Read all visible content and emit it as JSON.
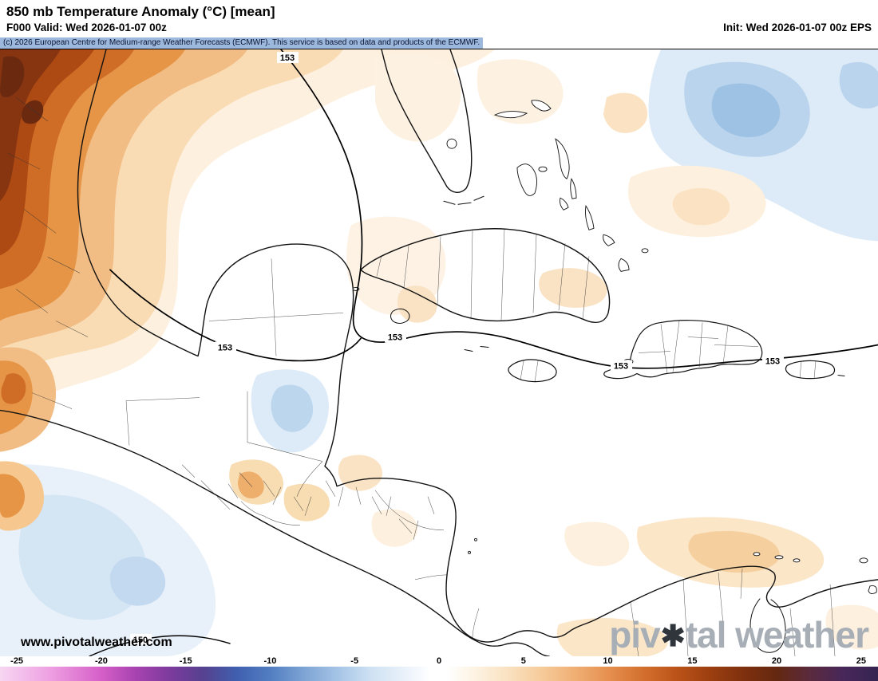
{
  "header": {
    "title": "850 mb Temperature Anomaly (°C) [mean]",
    "valid_label": "F000 Valid: Wed 2026-01-07 00z",
    "init_label": "Init: Wed 2026-01-07 00z EPS",
    "copyright": "(c) 2026 European Centre for Medium-range Weather Forecasts (ECMWF). This service is based on data and products of the ECMWF."
  },
  "map": {
    "contour_label": "153",
    "contour_label_secondary": "150",
    "watermark": "www.pivotalweather.com",
    "logo_prefix": "piv",
    "logo_gear_icon": "✱",
    "logo_suffix": "tal weather"
  },
  "colorbar": {
    "range": [
      -26,
      26
    ],
    "ticks": [
      {
        "value": -25,
        "label": "-25"
      },
      {
        "value": -20,
        "label": "-20"
      },
      {
        "value": -15,
        "label": "-15"
      },
      {
        "value": -10,
        "label": "-10"
      },
      {
        "value": -5,
        "label": "-5"
      },
      {
        "value": 0,
        "label": "0"
      },
      {
        "value": 5,
        "label": "5"
      },
      {
        "value": 10,
        "label": "10"
      },
      {
        "value": 15,
        "label": "15"
      },
      {
        "value": 20,
        "label": "20"
      },
      {
        "value": 25,
        "label": "25"
      }
    ],
    "stops": [
      {
        "value": -26,
        "color": "#f7d7f2"
      },
      {
        "value": -23,
        "color": "#ee9fe2"
      },
      {
        "value": -20,
        "color": "#d55fc8"
      },
      {
        "value": -18,
        "color": "#a843b0"
      },
      {
        "value": -16,
        "color": "#7e3b9e"
      },
      {
        "value": -14,
        "color": "#56418f"
      },
      {
        "value": -12,
        "color": "#3f5fae"
      },
      {
        "value": -10,
        "color": "#527ec2"
      },
      {
        "value": -8,
        "color": "#7da4d4"
      },
      {
        "value": -6,
        "color": "#a5c4e6"
      },
      {
        "value": -4,
        "color": "#cfe2f3"
      },
      {
        "value": -2,
        "color": "#eaf2fa"
      },
      {
        "value": -0.5,
        "color": "#ffffff"
      },
      {
        "value": 0.5,
        "color": "#ffffff"
      },
      {
        "value": 2,
        "color": "#fdf4e4"
      },
      {
        "value": 4,
        "color": "#fae2c2"
      },
      {
        "value": 6,
        "color": "#f6cc9c"
      },
      {
        "value": 8,
        "color": "#f0b075"
      },
      {
        "value": 10,
        "color": "#e69050"
      },
      {
        "value": 12,
        "color": "#d4712f"
      },
      {
        "value": 14,
        "color": "#bc5419"
      },
      {
        "value": 16,
        "color": "#9d3f10"
      },
      {
        "value": 18,
        "color": "#7f300e"
      },
      {
        "value": 20,
        "color": "#642810"
      },
      {
        "value": 22,
        "color": "#5a2a3e"
      },
      {
        "value": 24,
        "color": "#47275a"
      },
      {
        "value": 26,
        "color": "#352450"
      }
    ]
  }
}
